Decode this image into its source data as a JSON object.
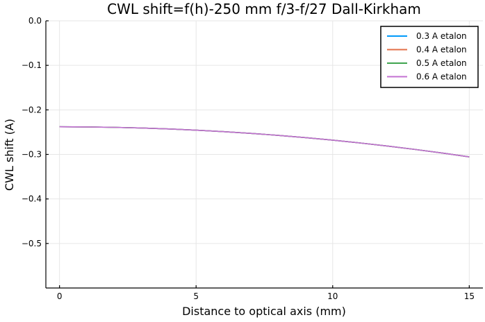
{
  "chart_data": {
    "type": "line",
    "title": "CWL shift=f(h)-250 mm f/3-f/27 Dall-Kirkham",
    "xlabel": "Distance to optical axis (mm)",
    "ylabel": "CWL shift (A)",
    "xlim": [
      -0.5,
      15.5
    ],
    "ylim": [
      -0.6,
      0.0
    ],
    "xticks": [
      0,
      5,
      10,
      15
    ],
    "xtick_labels": [
      "0",
      "5",
      "10",
      "15"
    ],
    "yticks": [
      0.0,
      -0.1,
      -0.2,
      -0.3,
      -0.4,
      -0.5
    ],
    "ytick_labels": [
      "0.0",
      "−0.1",
      "−0.2",
      "−0.3",
      "−0.4",
      "−0.5"
    ],
    "grid": true,
    "legend_position": "top-right",
    "x": [
      0,
      1,
      2,
      3,
      4,
      5,
      6,
      7,
      8,
      9,
      10,
      11,
      12,
      13,
      14,
      15
    ],
    "series": [
      {
        "name": "0.3 A etalon",
        "color": "#009AFA",
        "values": [
          -0.238,
          -0.2383,
          -0.2392,
          -0.2407,
          -0.2428,
          -0.2455,
          -0.2488,
          -0.2527,
          -0.2572,
          -0.2623,
          -0.268,
          -0.2743,
          -0.2812,
          -0.2887,
          -0.2968,
          -0.3055
        ]
      },
      {
        "name": "0.4 A etalon",
        "color": "#E36F47",
        "values": [
          -0.238,
          -0.2383,
          -0.2392,
          -0.2407,
          -0.2428,
          -0.2455,
          -0.2488,
          -0.2527,
          -0.2572,
          -0.2623,
          -0.268,
          -0.2743,
          -0.2812,
          -0.2887,
          -0.2968,
          -0.3055
        ]
      },
      {
        "name": "0.5 A etalon",
        "color": "#3EA44E",
        "values": [
          -0.238,
          -0.2383,
          -0.2392,
          -0.2407,
          -0.2428,
          -0.2455,
          -0.2488,
          -0.2527,
          -0.2572,
          -0.2623,
          -0.268,
          -0.2743,
          -0.2812,
          -0.2887,
          -0.2968,
          -0.3055
        ]
      },
      {
        "name": "0.6 A etalon",
        "color": "#C371D2",
        "values": [
          -0.238,
          -0.2383,
          -0.2392,
          -0.2407,
          -0.2428,
          -0.2455,
          -0.2488,
          -0.2527,
          -0.2572,
          -0.2623,
          -0.268,
          -0.2743,
          -0.2812,
          -0.2887,
          -0.2968,
          -0.3055
        ]
      }
    ]
  }
}
